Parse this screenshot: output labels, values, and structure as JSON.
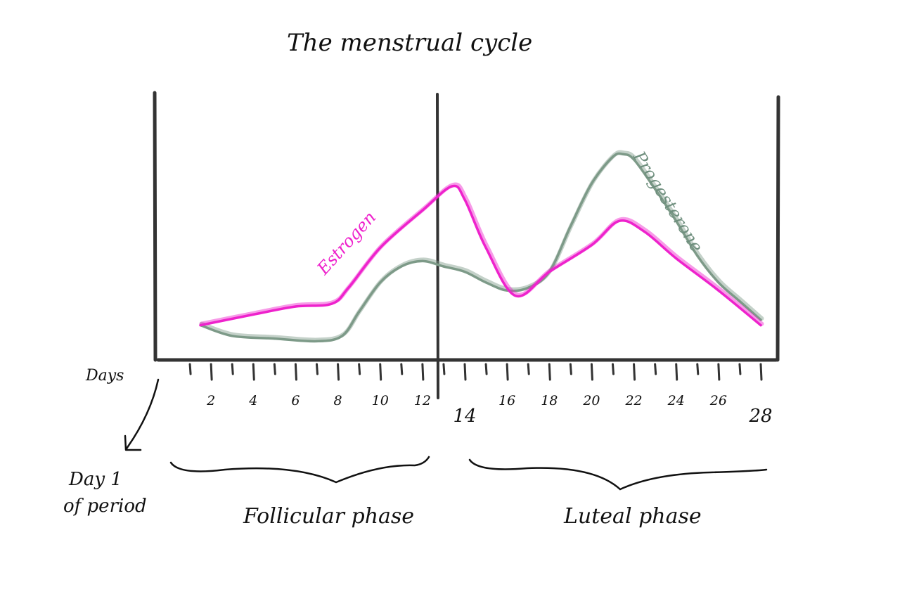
{
  "chart_data": {
    "type": "line",
    "title": "The menstrual cycle",
    "xlabel": "Days",
    "xlim": [
      0,
      28
    ],
    "x_ticks": [
      1,
      2,
      3,
      4,
      5,
      6,
      7,
      8,
      9,
      10,
      11,
      12,
      13,
      14,
      15,
      16,
      17,
      18,
      19,
      20,
      21,
      22,
      23,
      24,
      25,
      26,
      27,
      28
    ],
    "x_tick_labels": [
      {
        "x": 2,
        "label": "2"
      },
      {
        "x": 4,
        "label": "4"
      },
      {
        "x": 6,
        "label": "6"
      },
      {
        "x": 8,
        "label": "8"
      },
      {
        "x": 10,
        "label": "10"
      },
      {
        "x": 12,
        "label": "12"
      },
      {
        "x": 14,
        "label": "14"
      },
      {
        "x": 16,
        "label": "16"
      },
      {
        "x": 18,
        "label": "18"
      },
      {
        "x": 20,
        "label": "20"
      },
      {
        "x": 22,
        "label": "22"
      },
      {
        "x": 24,
        "label": "24"
      },
      {
        "x": 26,
        "label": "26"
      },
      {
        "x": 28,
        "label": "28"
      }
    ],
    "ylim": [
      0,
      100
    ],
    "grid": false,
    "series": [
      {
        "name": "Estrogen",
        "color": "#ee22cc",
        "points": [
          [
            1.5,
            13
          ],
          [
            4,
            17
          ],
          [
            6,
            20
          ],
          [
            7.7,
            21
          ],
          [
            8.5,
            27
          ],
          [
            10,
            42
          ],
          [
            12,
            56
          ],
          [
            13.4,
            65
          ],
          [
            14,
            60
          ],
          [
            15,
            42
          ],
          [
            16.4,
            24
          ],
          [
            18,
            33
          ],
          [
            20,
            43
          ],
          [
            21.3,
            52
          ],
          [
            22.5,
            48
          ],
          [
            24,
            38
          ],
          [
            26,
            26
          ],
          [
            28,
            13
          ]
        ]
      },
      {
        "name": "Progesterone",
        "color": "#7d9a88",
        "points": [
          [
            1.5,
            13
          ],
          [
            3,
            9
          ],
          [
            5,
            8
          ],
          [
            7,
            7
          ],
          [
            8.2,
            9
          ],
          [
            9,
            18
          ],
          [
            10,
            29
          ],
          [
            11,
            35
          ],
          [
            12,
            37
          ],
          [
            13,
            35
          ],
          [
            14,
            33
          ],
          [
            15,
            29
          ],
          [
            16,
            26
          ],
          [
            17,
            27
          ],
          [
            18,
            33
          ],
          [
            19,
            50
          ],
          [
            20,
            66
          ],
          [
            21,
            76
          ],
          [
            21.5,
            77
          ],
          [
            22,
            75
          ],
          [
            23,
            64
          ],
          [
            24,
            52
          ],
          [
            25,
            39
          ],
          [
            26,
            29
          ],
          [
            27,
            22
          ],
          [
            28,
            15
          ]
        ]
      }
    ],
    "annotations": [
      {
        "text": "Day 1",
        "line2": "of period"
      },
      {
        "text": "Follicular phase"
      },
      {
        "text": "Luteal phase"
      }
    ]
  }
}
